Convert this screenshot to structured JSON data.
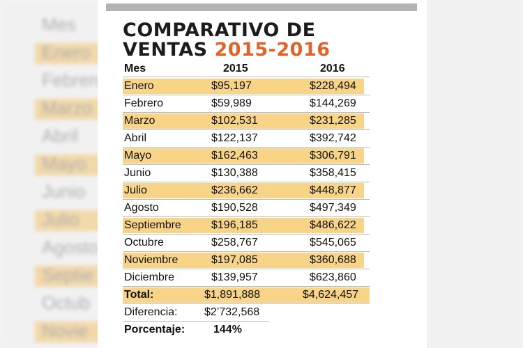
{
  "title": {
    "line1": "COMPARATIVO DE",
    "line2": "VENTAS",
    "years": "2015-2016"
  },
  "colors": {
    "highlight": "#f7d487",
    "accent": "#e0642a",
    "topbar": "#b3b3b3"
  },
  "table": {
    "headers": [
      "Mes",
      "2015",
      "2016"
    ],
    "rows": [
      [
        "Enero",
        "$95,197",
        "$228,494"
      ],
      [
        "Febrero",
        "$59,989",
        "$144,269"
      ],
      [
        "Marzo",
        "$102,531",
        "$231,285"
      ],
      [
        "Abril",
        "$122,137",
        "$392,742"
      ],
      [
        "Mayo",
        "$162,463",
        "$306,791"
      ],
      [
        "Junio",
        "$130,388",
        "$358,415"
      ],
      [
        "Julio",
        "$236,662",
        "$448,877"
      ],
      [
        "Agosto",
        "$190,528",
        "$497,349"
      ],
      [
        "Septiembre",
        "$196,185",
        "$486,622"
      ],
      [
        "Octubre",
        "$258,767",
        "$545,065"
      ],
      [
        "Noviembre",
        "$197,085",
        "$360,688"
      ],
      [
        "Diciembre",
        "$139,957",
        "$623,860"
      ]
    ],
    "total": [
      "Total:",
      "$1,891,888",
      "$4,624,457"
    ],
    "difference": [
      "Diferencia:",
      "$2’732,568"
    ],
    "percentage": [
      "Porcentaje:",
      "144%"
    ]
  },
  "chart_data": {
    "type": "table",
    "title": "COMPARATIVO DE VENTAS 2015-2016",
    "columns": [
      "Mes",
      "2015",
      "2016"
    ],
    "categories": [
      "Enero",
      "Febrero",
      "Marzo",
      "Abril",
      "Mayo",
      "Junio",
      "Julio",
      "Agosto",
      "Septiembre",
      "Octubre",
      "Noviembre",
      "Diciembre"
    ],
    "series": [
      {
        "name": "2015",
        "values": [
          95197,
          59989,
          102531,
          122137,
          162463,
          130388,
          236662,
          190528,
          196185,
          258767,
          197085,
          139957
        ]
      },
      {
        "name": "2016",
        "values": [
          228494,
          144269,
          231285,
          392742,
          306791,
          358415,
          448877,
          497349,
          486622,
          545065,
          360688,
          623860
        ]
      }
    ],
    "total": {
      "2015": 1891888,
      "2016": 4624457
    },
    "difference": 2732568,
    "percentage": 144
  },
  "background": {
    "echo_labels": [
      "Mes",
      "Enero",
      "Febrero",
      "Marzo",
      "Abril",
      "Mayo",
      "Junio",
      "Julio",
      "Agosto",
      "Septie",
      "Octub",
      "Novie"
    ]
  }
}
